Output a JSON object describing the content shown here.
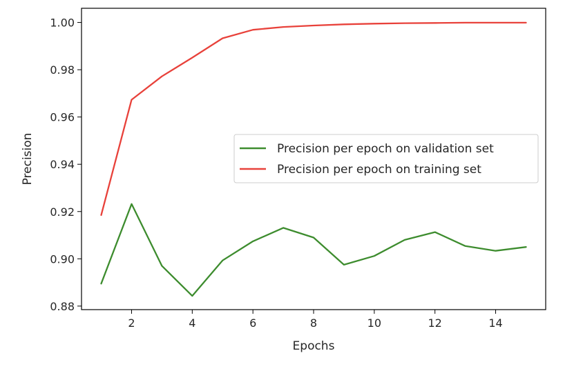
{
  "chart_data": {
    "type": "line",
    "title": "",
    "xlabel": "Epochs",
    "ylabel": "Precision",
    "xlim": [
      0.35,
      15.65
    ],
    "ylim": [
      0.8785,
      1.006
    ],
    "xticks": [
      2,
      4,
      6,
      8,
      10,
      12,
      14
    ],
    "yticks": [
      0.88,
      0.9,
      0.92,
      0.94,
      0.96,
      0.98,
      1.0
    ],
    "ytick_labels": [
      "0.88",
      "0.90",
      "0.92",
      "0.94",
      "0.96",
      "0.98",
      "1.00"
    ],
    "grid": false,
    "legend_position": "center-right",
    "x": [
      1,
      2,
      3,
      4,
      5,
      6,
      7,
      8,
      9,
      10,
      11,
      12,
      13,
      14,
      15
    ],
    "series": [
      {
        "name": "Precision per epoch on validation set",
        "color": "#3d8c2e",
        "values": [
          0.8895,
          0.9232,
          0.897,
          0.8843,
          0.8993,
          0.9074,
          0.9131,
          0.909,
          0.8975,
          0.9012,
          0.908,
          0.9113,
          0.9054,
          0.9034,
          0.905
        ]
      },
      {
        "name": "Precision per epoch on training set",
        "color": "#e8413a",
        "values": [
          0.9185,
          0.9673,
          0.9772,
          0.9851,
          0.9933,
          0.9969,
          0.9981,
          0.9987,
          0.9992,
          0.9995,
          0.9997,
          0.9998,
          0.9999,
          0.9999,
          0.9999
        ]
      }
    ]
  }
}
